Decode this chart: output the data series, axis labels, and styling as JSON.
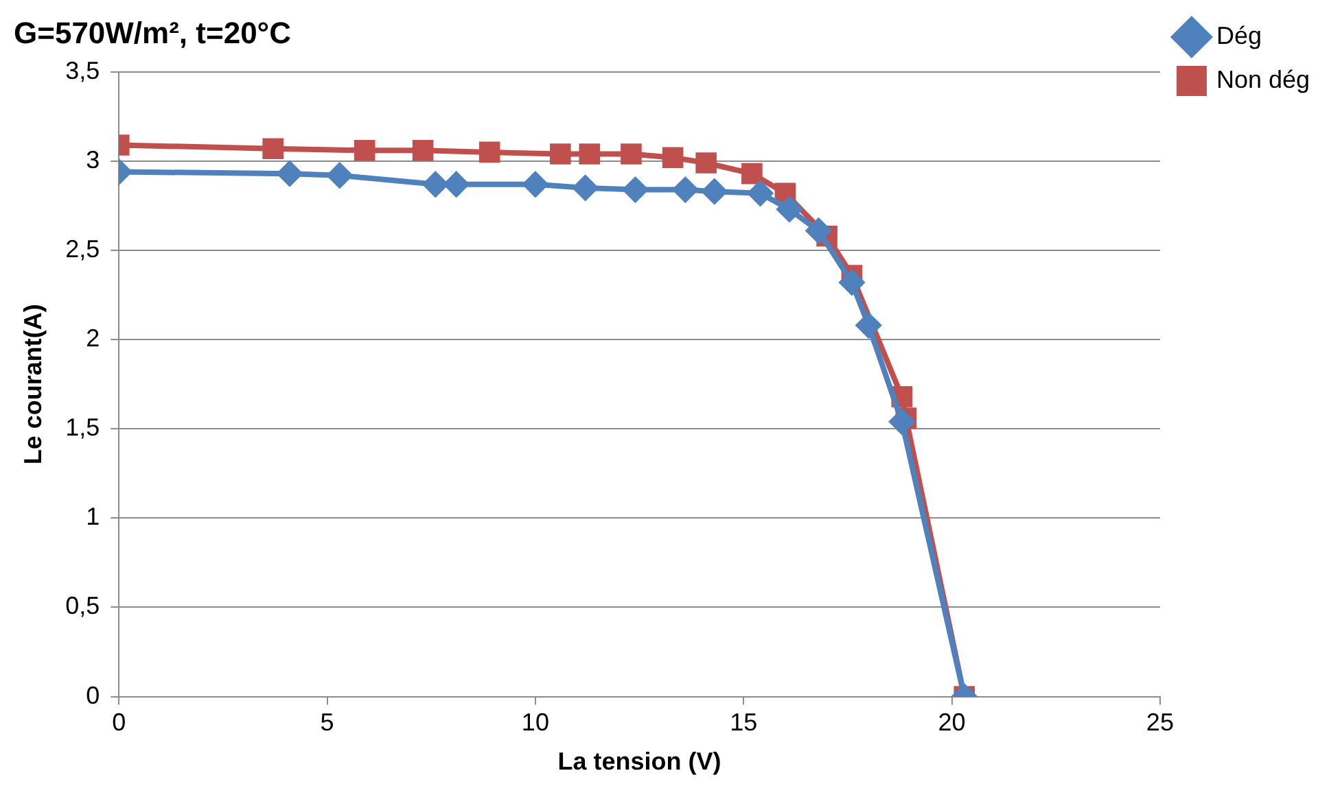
{
  "chart_data": {
    "type": "line",
    "title": "G=570W/m², t=20°C",
    "xlabel": "La tension (V)",
    "ylabel": "Le courant(A)",
    "xlim": [
      0,
      25
    ],
    "xticks": [
      0,
      5,
      10,
      15,
      20,
      25
    ],
    "ylim": [
      0,
      3.5
    ],
    "yticks": [
      0,
      {
        "value": 0.5,
        "label": "0,5"
      },
      1,
      {
        "value": 1.5,
        "label": "1,5"
      },
      2,
      {
        "value": 2.5,
        "label": "2,5"
      },
      3,
      {
        "value": 3.5,
        "label": "3,5"
      }
    ],
    "grid": "y",
    "legend": "top right",
    "line_style": "solid",
    "series": [
      {
        "name": "Non dég",
        "color": "#c0504d",
        "marker": "square",
        "x": [
          0,
          3.7,
          5.9,
          7.3,
          8.9,
          10.6,
          11.3,
          12.3,
          13.3,
          14.1,
          15.2,
          16.0,
          17.0,
          17.6,
          18.8,
          18.9,
          20.3
        ],
        "values": [
          3.09,
          3.07,
          3.06,
          3.06,
          3.05,
          3.04,
          3.04,
          3.04,
          3.02,
          2.99,
          2.93,
          2.82,
          2.58,
          2.36,
          1.68,
          1.56,
          0
        ]
      },
      {
        "name": "Dég",
        "color": "#4f81bd",
        "marker": "diamond",
        "x": [
          0,
          4.1,
          5.3,
          7.6,
          8.1,
          10.0,
          11.2,
          12.4,
          13.6,
          14.3,
          15.4,
          16.1,
          16.8,
          17.6,
          18.0,
          18.8,
          20.3
        ],
        "values": [
          2.94,
          2.93,
          2.92,
          2.87,
          2.87,
          2.87,
          2.85,
          2.84,
          2.84,
          2.83,
          2.82,
          2.73,
          2.61,
          2.32,
          2.08,
          1.54,
          0
        ]
      }
    ]
  }
}
